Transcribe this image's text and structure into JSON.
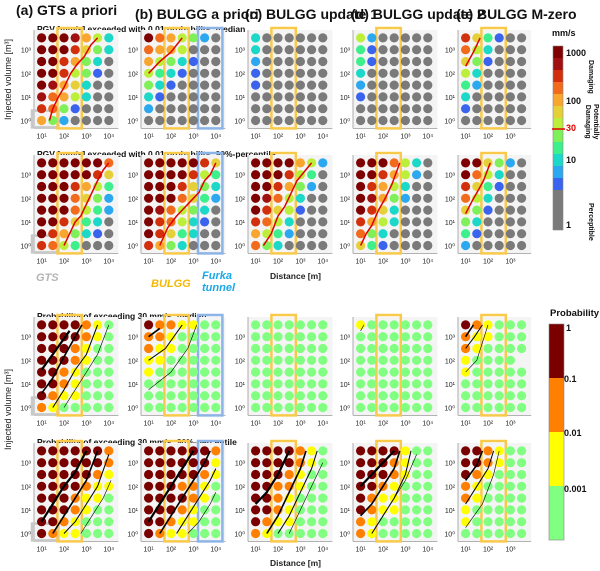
{
  "panel_titles": [
    "(a) GTS a priori",
    "(b) BULGG a priori",
    "(c) BULGG update 1",
    "(d) BULGG update 2",
    "(e) BULGG M-zero"
  ],
  "row_titles": [
    "PGV [mm/s] exceeded with 0.01 probability: median",
    "PGV [mm/s] exceeded with 0.01 probability: 90%-percentile",
    "Probability of exceeding  30 mm/s: median",
    "Probability of exceeding  30 mm/s: 90%-percentile"
  ],
  "ylabel": "Injected volume [m³]",
  "xlabel": "Distance [m]",
  "y_ticks": [
    "10⁰",
    "10¹",
    "10²",
    "10³"
  ],
  "x_ticks": [
    "10¹",
    "10²",
    "10³",
    "10⁴"
  ],
  "site_labels": {
    "gts": "GTS",
    "bulgg": "BULGG",
    "furka": "Furka\ntunnel"
  },
  "pgv_colorbar": {
    "unit": "mm/s",
    "ticks": [
      "1000",
      "100",
      "30",
      "10",
      "1"
    ],
    "zones": [
      "Damaging",
      "Potentially\nDamaging",
      "Perceptible"
    ],
    "threshold_color": "#e00000"
  },
  "prob_colorbar": {
    "title": "Probability",
    "ticks": [
      "1",
      "0.1",
      "0.01",
      "0.001"
    ],
    "colors": [
      "#7a0000",
      "#ff7f00",
      "#ffff00",
      "#80ff80"
    ]
  },
  "colors": {
    "pgv": {
      "a": "#7f0000",
      "b": "#a01010",
      "c": "#d2300c",
      "d": "#f26a1c",
      "e": "#f9a630",
      "f": "#e6d03a",
      "g": "#bcef3a",
      "h": "#80f05a",
      "i": "#3ef08c",
      "j": "#1cd8c8",
      "k": "#2ca8f0",
      "l": "#3a64ee",
      "x": "#7a7a7a"
    },
    "prob": {
      "r": "#7a0000",
      "o": "#ff7f00",
      "y": "#ffff00",
      "g": "#80ff80"
    },
    "gts_box": "#c8c8c8",
    "bulgg_box": "#f9c94a",
    "furka_box": "#8cb4e6",
    "pgv_line": "#e00000",
    "prob_line": "#000000"
  },
  "chart_data": [
    {
      "type": "heatmap",
      "title": "PGV [mm/s] exceeded with 0.01 probability: median",
      "xlabel": "Distance [m]",
      "ylabel": "Injected volume [m³]",
      "note": "rows from top (10^3.5) to bottom (10^0) in half-decade steps; columns distance bins from 10^1 upward in half-decade steps; codes map to colors.pgv",
      "panels": {
        "a": [
          "aaabegj",
          "aaacfhj",
          "aacehjx",
          "aacghlx",
          "abefjxx",
          "bdegjxx",
          "cdhlxxx",
          "ehkxxxx"
        ],
        "b": [
          "adeghkx",
          "deegxxx",
          "eghjlxx",
          "gijlxxx",
          "hjlxxxx",
          "jlxxxxx",
          "kxxxxxx",
          "xxxxxxx"
        ],
        "c": [
          "jxxxxxx",
          "jxxxxxx",
          "kxxxxxx",
          "lxxxxxx",
          "lxxxxxx",
          "xxxxxxx",
          "xxxxxxx",
          "xxxxxxx"
        ],
        "d": [
          "gkxxxxx",
          "ilxxxxx",
          "ilxxxxx",
          "jxxxxxx",
          "kxxxxxx",
          "lxxxxxx",
          "xxxxxxx",
          "xxxxxxx"
        ],
        "e": [
          "cfilxx",
          "dgjxxx",
          "fhlxxx",
          "gjxxxx",
          "ikxxxx",
          "jxxxxx",
          "lxxxxx",
          "xxxxxx"
        ]
      },
      "threshold_line_mm_s": 30
    },
    {
      "type": "heatmap",
      "title": "PGV [mm/s] exceeded with 0.01 probability: 90%-percentile",
      "panels": {
        "a": [
          "aaaaaad",
          "aaaaacf",
          "aaacegi",
          "aaadfhk",
          "aaadgik",
          "aacfijx",
          "acehjlx",
          "cdgixxx"
        ],
        "b": [
          "aaaaacf",
          "aaaacgi",
          "aaacfhj",
          "aaadfik",
          "abdghjx",
          "acdgjlx",
          "acfijxx",
          "cehjxxx"
        ],
        "c": [
          "aaaaegk",
          "aaacgix",
          "aacehkx",
          "abdgjxx",
          "acfglxx",
          "cdgjxxx",
          "egikxxx",
          "dhjxxxx"
        ],
        "d": [
          "aaadgjx",
          "aacegkx",
          "acegjxx",
          "abehkxx",
          "acfjxxx",
          "cegjxxx",
          "dhjxxxx",
          "filxxxx"
        ],
        "e": [
          "aafhkx",
          "adgjxx",
          "cfilxx",
          "dgjxxx",
          "fhlxxx",
          "hjxxxx",
          "ilxxxx",
          "kxxxxx"
        ]
      }
    },
    {
      "type": "heatmap",
      "title": "Probability of exceeding 30 mm/s: median",
      "note": "codes map to colors.prob: r>=0.1, o 0.01-0.1, y 0.001-0.01, g<0.001",
      "panels": {
        "a": [
          "rrrroyg",
          "rrrroyg",
          "rrroygg",
          "rrroygg",
          "rroyggg",
          "rroyggg",
          "royyggg",
          "oyggggg"
        ],
        "b": [
          "rooyygg",
          "ooyggggg",
          "oyyggggg",
          "yyggggg",
          "yggggggg",
          "ggggggg",
          "ggggggg",
          "ggggggg"
        ],
        "c": [
          "ggggggg",
          "ggggggg",
          "ggggggg",
          "ggggggg",
          "ggggggg",
          "ggggggg",
          "ggggggg",
          "ggggggg"
        ],
        "d": [
          "yggggggg",
          "ggggggg",
          "ggggggg",
          "ggggggg",
          "ggggggg",
          "ggggggg",
          "ggggggg",
          "ggggggg"
        ],
        "e": [
          "royggg",
          "oyyggg",
          "oyggggg",
          "ygggg",
          "ygggggg",
          "gggggg",
          "gggggg",
          "gggggg"
        ]
      }
    },
    {
      "type": "heatmap",
      "title": "Probability of exceeding 30 mm/s: 90%-percentile",
      "panels": {
        "a": [
          "rrrrrro",
          "rrrrrro",
          "rrrrroy",
          "rrrroyy",
          "rrroyyg",
          "rrroygg",
          "rroyggg",
          "royyggg"
        ],
        "b": [
          "rrrrrro",
          "rrrrrry",
          "rrrrroy",
          "rrrooyg",
          "rrrroyg",
          "rrroygg",
          "rroyygg",
          "royyggg"
        ],
        "c": [
          "rrrroyg",
          "rrrroyg",
          "rrroygg",
          "rrooygg",
          "rroyggg",
          "rroyggg",
          "royyggg",
          "oyggggg"
        ],
        "d": [
          "rrrryggg",
          "rrroyggg",
          "rrroyggg",
          "rroyggg",
          "royyggg",
          "royyggg",
          "oyggggg",
          "oyggggg"
        ],
        "e": [
          "rroyggg",
          "rroyggg",
          "roygggg",
          "oyggggg",
          "oyggggg",
          "ygggggg",
          "ygggggg",
          "ggggggg"
        ]
      }
    }
  ]
}
